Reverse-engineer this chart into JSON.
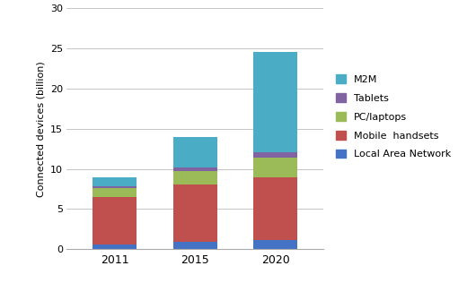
{
  "categories": [
    "2011",
    "2015",
    "2020"
  ],
  "series": {
    "Local Area Network": [
      0.6,
      0.85,
      1.1
    ],
    "Mobile  handsets": [
      5.9,
      7.15,
      7.8
    ],
    "PC/laptops": [
      1.1,
      1.75,
      2.5
    ],
    "Tablets": [
      0.2,
      0.4,
      0.65
    ],
    "M2M": [
      1.2,
      3.85,
      12.5
    ]
  },
  "colors": {
    "Local Area Network": "#4472C4",
    "Mobile  handsets": "#C0504D",
    "PC/laptops": "#9BBB59",
    "Tablets": "#8064A2",
    "M2M": "#4BACC6"
  },
  "ylabel": "Connected devices (billion)",
  "ylim": [
    0,
    30
  ],
  "yticks": [
    0,
    5,
    10,
    15,
    20,
    25,
    30
  ],
  "legend_order": [
    "M2M",
    "Tablets",
    "PC/laptops",
    "Mobile  handsets",
    "Local Area Network"
  ],
  "bar_width": 0.55,
  "background_color": "#FFFFFF",
  "grid_color": "#BBBBBB"
}
